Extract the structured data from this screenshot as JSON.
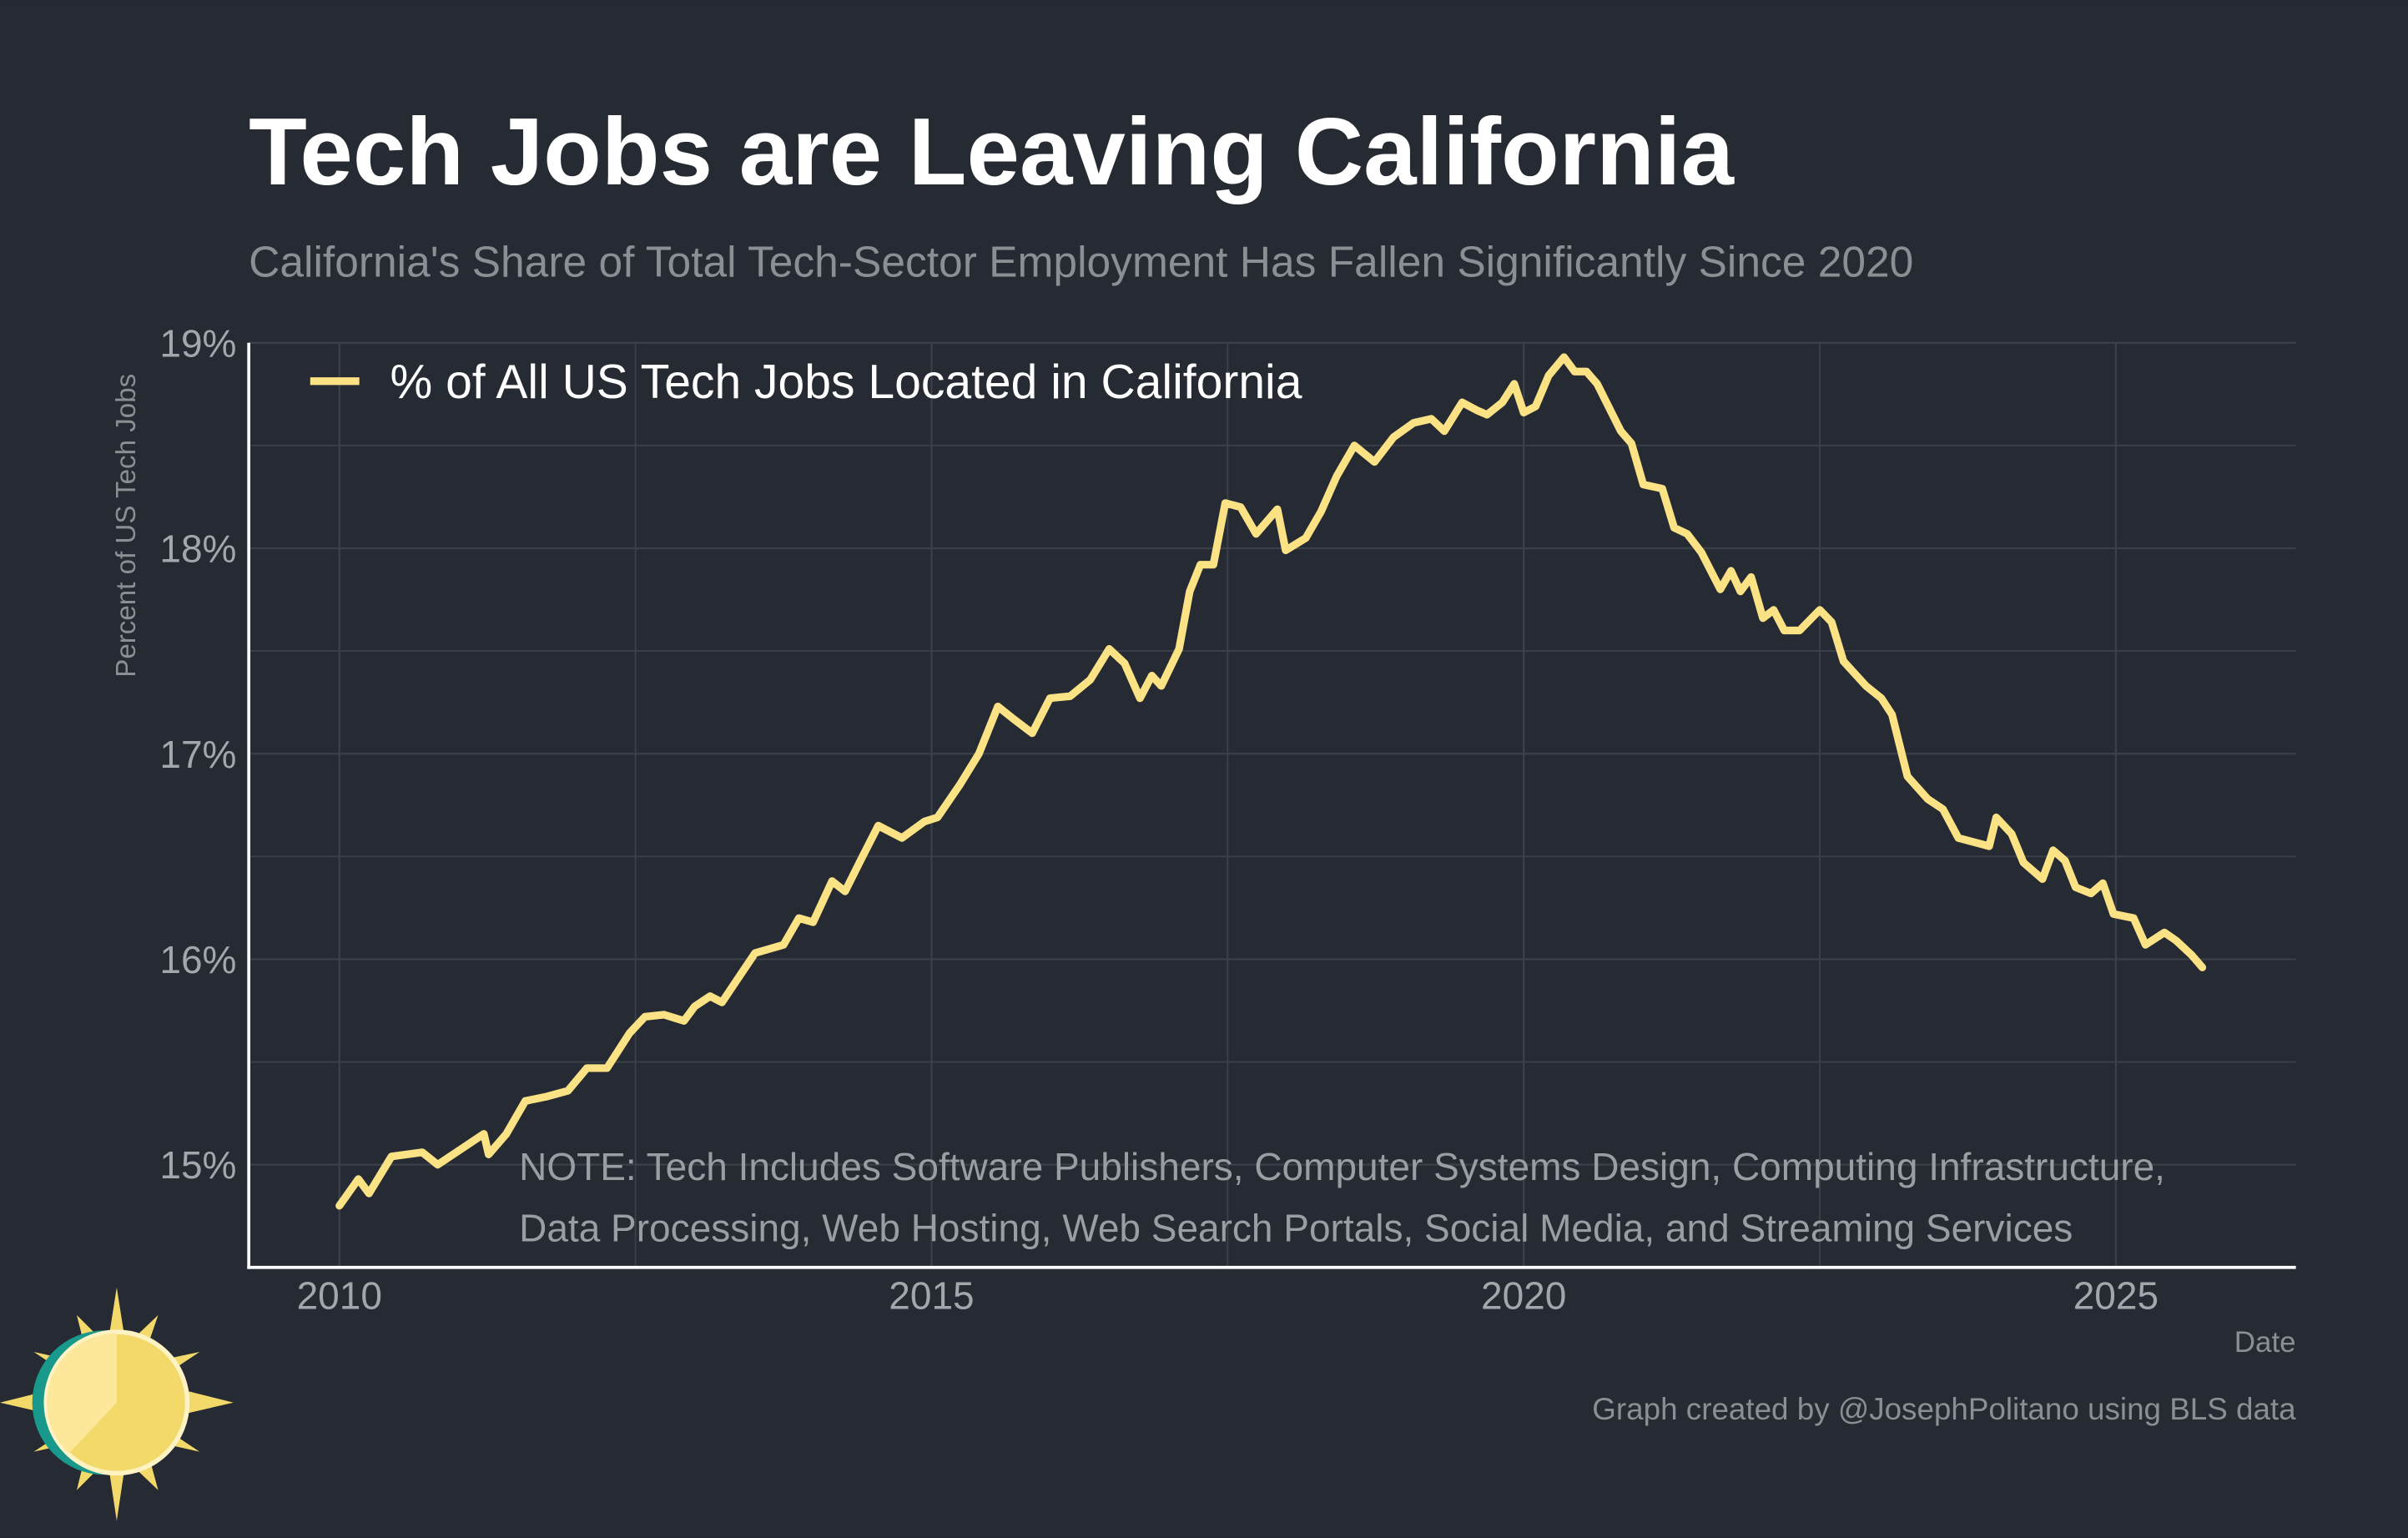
{
  "chart_data": {
    "type": "line",
    "title": "Tech Jobs are Leaving California",
    "subtitle": "California's Share of Total Tech-Sector Employment Has Fallen Significantly Since 2020",
    "y_label": "Percent of US Tech Jobs",
    "x_label": "Date",
    "caption": "Graph created by @JosephPolitano using BLS data",
    "annotations": [
      "NOTE: Tech Includes Software Publishers, Computer Systems Design, Computing Infrastructure,",
      "Data Processing, Web Hosting, Web Search Portals, Social Media, and Streaming Services"
    ],
    "legend": "top-left",
    "grid": true,
    "xlim": [
      2009.235,
      2026.52
    ],
    "ylim": [
      14.5,
      19.0
    ],
    "xticks": [
      2010,
      2015,
      2020,
      2025
    ],
    "xminor": [
      2012.5,
      2017.5,
      2022.5
    ],
    "yticks": [
      {
        "value": 15,
        "label": "15%"
      },
      {
        "value": 16,
        "label": "16%"
      },
      {
        "value": 17,
        "label": "17%"
      },
      {
        "value": 18,
        "label": "18%"
      },
      {
        "value": 19,
        "label": "19%"
      }
    ],
    "yminor": [
      15.5,
      16.5,
      17.5,
      18.5
    ],
    "x": [
      2010.0,
      2010.16,
      2010.25,
      2010.44,
      2010.7,
      2010.83,
      2011.09,
      2011.22,
      2011.26,
      2011.41,
      2011.57,
      2011.74,
      2011.93,
      2012.09,
      2012.26,
      2012.45,
      2012.58,
      2012.74,
      2012.91,
      2013.0,
      2013.13,
      2013.23,
      2013.51,
      2013.75,
      2013.88,
      2014.0,
      2014.16,
      2014.27,
      2014.4,
      2014.55,
      2014.75,
      2014.94,
      2015.05,
      2015.24,
      2015.4,
      2015.56,
      2015.69,
      2015.85,
      2016.0,
      2016.17,
      2016.34,
      2016.5,
      2016.63,
      2016.76,
      2016.86,
      2016.94,
      2017.09,
      2017.18,
      2017.27,
      2017.38,
      2017.48,
      2017.61,
      2017.74,
      2017.92,
      2017.99,
      2018.16,
      2018.29,
      2018.42,
      2018.57,
      2018.74,
      2018.9,
      2019.07,
      2019.22,
      2019.33,
      2019.48,
      2019.61,
      2019.69,
      2019.82,
      2019.92,
      2020.0,
      2020.1,
      2020.21,
      2020.34,
      2020.43,
      2020.53,
      2020.62,
      2020.82,
      2020.91,
      2021.01,
      2021.17,
      2021.27,
      2021.38,
      2021.5,
      2021.66,
      2021.75,
      2021.83,
      2021.92,
      2022.02,
      2022.11,
      2022.2,
      2022.33,
      2022.5,
      2022.6,
      2022.7,
      2022.89,
      2023.02,
      2023.11,
      2023.24,
      2023.41,
      2023.54,
      2023.67,
      2023.93,
      2023.99,
      2024.12,
      2024.22,
      2024.38,
      2024.47,
      2024.57,
      2024.66,
      2024.79,
      2024.89,
      2024.98,
      2025.15,
      2025.25,
      2025.41,
      2025.51,
      2025.64,
      2025.73
    ],
    "series": [
      {
        "name": "% of All US Tech Jobs Located in California",
        "color": "#fbe285",
        "values": [
          14.8,
          14.93,
          14.86,
          15.04,
          15.06,
          15.0,
          15.1,
          15.15,
          15.05,
          15.15,
          15.31,
          15.33,
          15.36,
          15.47,
          15.47,
          15.64,
          15.72,
          15.73,
          15.7,
          15.77,
          15.82,
          15.79,
          16.03,
          16.07,
          16.2,
          16.18,
          16.38,
          16.33,
          16.48,
          16.65,
          16.59,
          16.67,
          16.69,
          16.85,
          17.0,
          17.23,
          17.17,
          17.1,
          17.27,
          17.28,
          17.36,
          17.51,
          17.44,
          17.27,
          17.38,
          17.33,
          17.51,
          17.79,
          17.92,
          17.92,
          18.22,
          18.2,
          18.07,
          18.19,
          17.99,
          18.05,
          18.18,
          18.35,
          18.5,
          18.42,
          18.54,
          18.61,
          18.63,
          18.57,
          18.71,
          18.67,
          18.65,
          18.71,
          18.8,
          18.66,
          18.69,
          18.84,
          18.93,
          18.86,
          18.86,
          18.8,
          18.57,
          18.51,
          18.31,
          18.29,
          18.1,
          18.07,
          17.98,
          17.8,
          17.89,
          17.79,
          17.86,
          17.66,
          17.7,
          17.6,
          17.6,
          17.7,
          17.64,
          17.45,
          17.33,
          17.27,
          17.19,
          16.89,
          16.78,
          16.73,
          16.59,
          16.55,
          16.69,
          16.61,
          16.47,
          16.39,
          16.53,
          16.48,
          16.35,
          16.32,
          16.37,
          16.22,
          16.2,
          16.07,
          16.13,
          16.09,
          16.02,
          15.96
        ]
      }
    ]
  }
}
